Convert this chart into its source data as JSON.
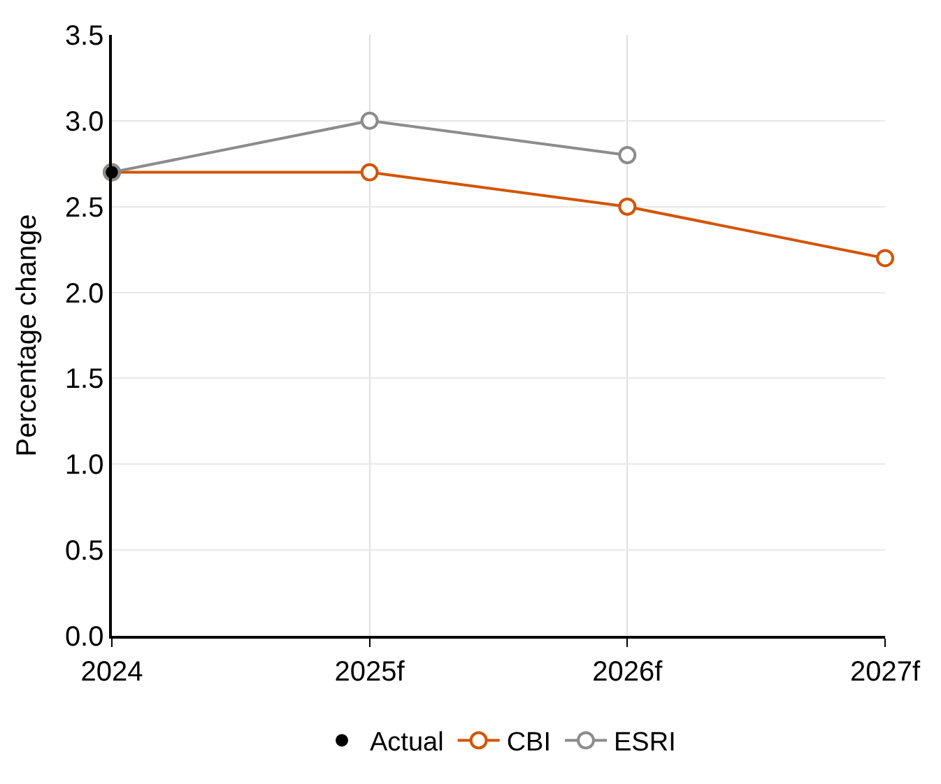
{
  "chart_data": {
    "type": "line",
    "ylabel": "Percentage change",
    "categories": [
      "2024",
      "2025f",
      "2026f",
      "2027f"
    ],
    "series": [
      {
        "name": "Actual",
        "type": "scatter",
        "color": "#000000",
        "values": [
          2.7,
          null,
          null,
          null
        ]
      },
      {
        "name": "CBI",
        "color": "#d35400",
        "values": [
          2.7,
          2.7,
          2.5,
          2.2
        ]
      },
      {
        "name": "ESRI",
        "color": "#8c8c8c",
        "values": [
          2.7,
          3.0,
          2.8,
          null
        ]
      }
    ],
    "ylim": [
      0,
      3.5
    ],
    "yticks": [
      {
        "value": 0,
        "label": "0.0"
      },
      {
        "value": 0.5,
        "label": "0.5"
      },
      {
        "value": 1,
        "label": "1.0"
      },
      {
        "value": 1.5,
        "label": "1.5"
      },
      {
        "value": 2,
        "label": "2.0"
      },
      {
        "value": 2.5,
        "label": "2.5"
      },
      {
        "value": 3,
        "label": "3.0"
      },
      {
        "value": 3.5,
        "label": "3.5"
      }
    ],
    "grid": true,
    "legend": "bottom",
    "marker": "circle",
    "line_style": "solid"
  }
}
